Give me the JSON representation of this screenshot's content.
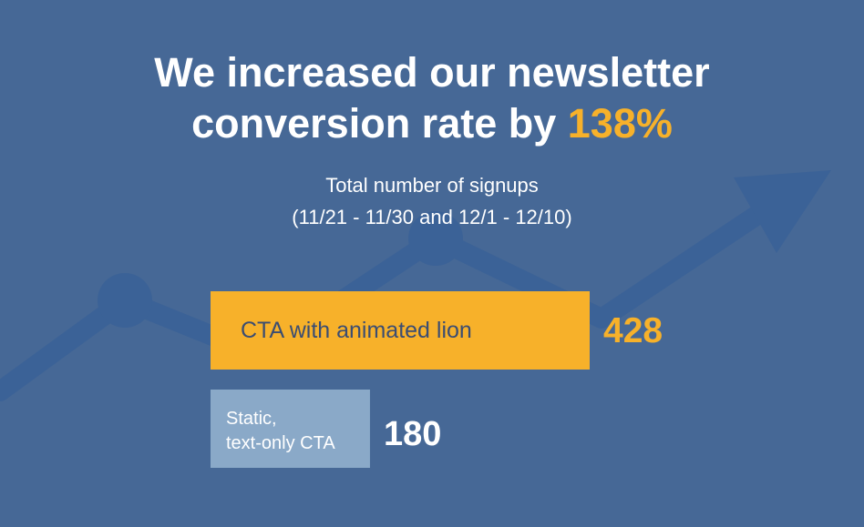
{
  "headline": {
    "line1": "We increased our newsletter",
    "line2_prefix": "conversion rate by",
    "line2_accent": "138%"
  },
  "subtitle": {
    "line1": "Total number of signups",
    "line2": "(11/21 - 11/30 and 12/1 - 12/10)"
  },
  "colors": {
    "background": "#466896",
    "accent": "#f7b12a",
    "static_bar": "#8aa9c8",
    "trend_line": "#3b6297"
  },
  "chart_data": {
    "type": "bar",
    "orientation": "horizontal",
    "categories": [
      "CTA with animated lion",
      "Static,\ntext-only CTA"
    ],
    "values": [
      428,
      180
    ],
    "value_labels": [
      "428",
      "180"
    ],
    "bar_colors": [
      "#f7b12a",
      "#8aa9c8"
    ],
    "label_colors": [
      "#3b4d72",
      "#ffffff"
    ],
    "value_label_colors": [
      "#f7b12a",
      "#ffffff"
    ],
    "title": "",
    "xlabel": "",
    "ylabel": "",
    "grid": false,
    "legend": "none"
  }
}
